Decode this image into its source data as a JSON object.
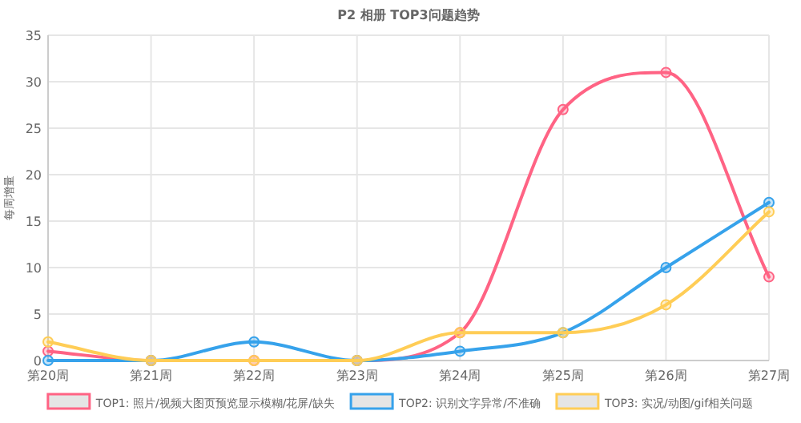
{
  "chart_data": {
    "type": "line",
    "title": "P2 相册 TOP3问题趋势",
    "ylabel": "每周增量",
    "categories": [
      "第20周",
      "第21周",
      "第22周",
      "第23周",
      "第24周",
      "第25周",
      "第26周",
      "第27周"
    ],
    "series": [
      {
        "name": "TOP1: 照片/视频大图页预览显示模糊/花屏/缺失",
        "color": "#ff6384",
        "values": [
          1,
          0,
          0,
          0,
          3,
          27,
          31,
          9
        ]
      },
      {
        "name": "TOP2: 识别文字异常/不准确",
        "color": "#36a2eb",
        "values": [
          0,
          0,
          2,
          0,
          1,
          3,
          10,
          17
        ]
      },
      {
        "name": "TOP3: 实况/动图/gif相关问题",
        "color": "#ffcd56",
        "values": [
          2,
          0,
          0,
          0,
          3,
          3,
          6,
          16
        ]
      }
    ],
    "ylim": [
      0,
      35
    ],
    "yticks": [
      0,
      5,
      10,
      15,
      20,
      25,
      30,
      35
    ],
    "grid": true,
    "legend": "bottom",
    "marker": "circle",
    "line_style": "solid"
  }
}
